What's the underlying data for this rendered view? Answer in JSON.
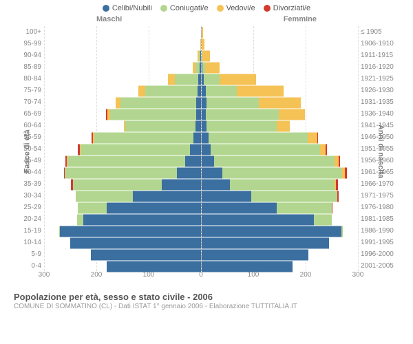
{
  "legend": {
    "items": [
      {
        "label": "Celibi/Nubili",
        "color": "#3b6fa0"
      },
      {
        "label": "Coniugati/e",
        "color": "#b2d68f"
      },
      {
        "label": "Vedovi/e",
        "color": "#f5c255"
      },
      {
        "label": "Divorziati/e",
        "color": "#d23a2e"
      }
    ]
  },
  "chart": {
    "type": "population-pyramid",
    "male_label": "Maschi",
    "female_label": "Femmine",
    "left_axis_title": "Fasce di età",
    "right_axis_title": "Anni di nascita",
    "x_max": 300,
    "x_ticks": [
      300,
      200,
      100,
      0,
      100,
      200,
      300
    ],
    "grid_positions_pct": [
      0,
      16.67,
      33.33,
      50,
      66.67,
      83.33,
      100
    ],
    "colors": {
      "single": "#3b6fa0",
      "married": "#b2d68f",
      "widowed": "#f5c255",
      "divorced": "#d23a2e",
      "grid": "#dddddd",
      "background": "#ffffff"
    },
    "rows": [
      {
        "age": "100+",
        "birth": "≤ 1905",
        "m": [
          0,
          0,
          0,
          0
        ],
        "f": [
          0,
          0,
          3,
          0
        ]
      },
      {
        "age": "95-99",
        "birth": "1906-1910",
        "m": [
          0,
          0,
          1,
          0
        ],
        "f": [
          0,
          0,
          6,
          0
        ]
      },
      {
        "age": "90-94",
        "birth": "1911-1915",
        "m": [
          1,
          2,
          3,
          0
        ],
        "f": [
          1,
          1,
          14,
          0
        ]
      },
      {
        "age": "85-89",
        "birth": "1916-1920",
        "m": [
          2,
          8,
          5,
          0
        ],
        "f": [
          2,
          5,
          28,
          0
        ]
      },
      {
        "age": "80-84",
        "birth": "1921-1925",
        "m": [
          4,
          45,
          14,
          0
        ],
        "f": [
          5,
          30,
          70,
          0
        ]
      },
      {
        "age": "75-79",
        "birth": "1926-1930",
        "m": [
          6,
          100,
          14,
          0
        ],
        "f": [
          8,
          60,
          90,
          0
        ]
      },
      {
        "age": "70-74",
        "birth": "1931-1935",
        "m": [
          8,
          145,
          10,
          0
        ],
        "f": [
          10,
          100,
          80,
          0
        ]
      },
      {
        "age": "65-69",
        "birth": "1936-1940",
        "m": [
          8,
          165,
          6,
          2
        ],
        "f": [
          8,
          140,
          50,
          0
        ]
      },
      {
        "age": "60-64",
        "birth": "1941-1945",
        "m": [
          10,
          135,
          2,
          0
        ],
        "f": [
          10,
          135,
          25,
          0
        ]
      },
      {
        "age": "55-59",
        "birth": "1946-1950",
        "m": [
          14,
          190,
          2,
          3
        ],
        "f": [
          14,
          190,
          18,
          2
        ]
      },
      {
        "age": "50-54",
        "birth": "1951-1955",
        "m": [
          20,
          210,
          1,
          4
        ],
        "f": [
          18,
          210,
          10,
          3
        ]
      },
      {
        "age": "45-49",
        "birth": "1956-1960",
        "m": [
          30,
          225,
          1,
          3
        ],
        "f": [
          25,
          230,
          8,
          3
        ]
      },
      {
        "age": "40-44",
        "birth": "1961-1965",
        "m": [
          45,
          215,
          0,
          2
        ],
        "f": [
          40,
          230,
          5,
          4
        ]
      },
      {
        "age": "35-39",
        "birth": "1966-1970",
        "m": [
          75,
          170,
          0,
          3
        ],
        "f": [
          55,
          200,
          3,
          4
        ]
      },
      {
        "age": "30-34",
        "birth": "1971-1975",
        "m": [
          130,
          110,
          0,
          0
        ],
        "f": [
          95,
          165,
          1,
          2
        ]
      },
      {
        "age": "25-29",
        "birth": "1976-1980",
        "m": [
          180,
          55,
          0,
          0
        ],
        "f": [
          145,
          105,
          0,
          1
        ]
      },
      {
        "age": "20-24",
        "birth": "1981-1985",
        "m": [
          225,
          12,
          0,
          0
        ],
        "f": [
          215,
          35,
          0,
          0
        ]
      },
      {
        "age": "15-19",
        "birth": "1986-1990",
        "m": [
          270,
          1,
          0,
          0
        ],
        "f": [
          268,
          3,
          0,
          0
        ]
      },
      {
        "age": "10-14",
        "birth": "1991-1995",
        "m": [
          250,
          0,
          0,
          0
        ],
        "f": [
          245,
          0,
          0,
          0
        ]
      },
      {
        "age": "5-9",
        "birth": "1996-2000",
        "m": [
          210,
          0,
          0,
          0
        ],
        "f": [
          205,
          0,
          0,
          0
        ]
      },
      {
        "age": "0-4",
        "birth": "2001-2005",
        "m": [
          180,
          0,
          0,
          0
        ],
        "f": [
          175,
          0,
          0,
          0
        ]
      }
    ]
  },
  "footer": {
    "title": "Popolazione per età, sesso e stato civile - 2006",
    "subtitle": "COMUNE DI SOMMATINO (CL) - Dati ISTAT 1° gennaio 2006 - Elaborazione TUTTITALIA.IT"
  }
}
